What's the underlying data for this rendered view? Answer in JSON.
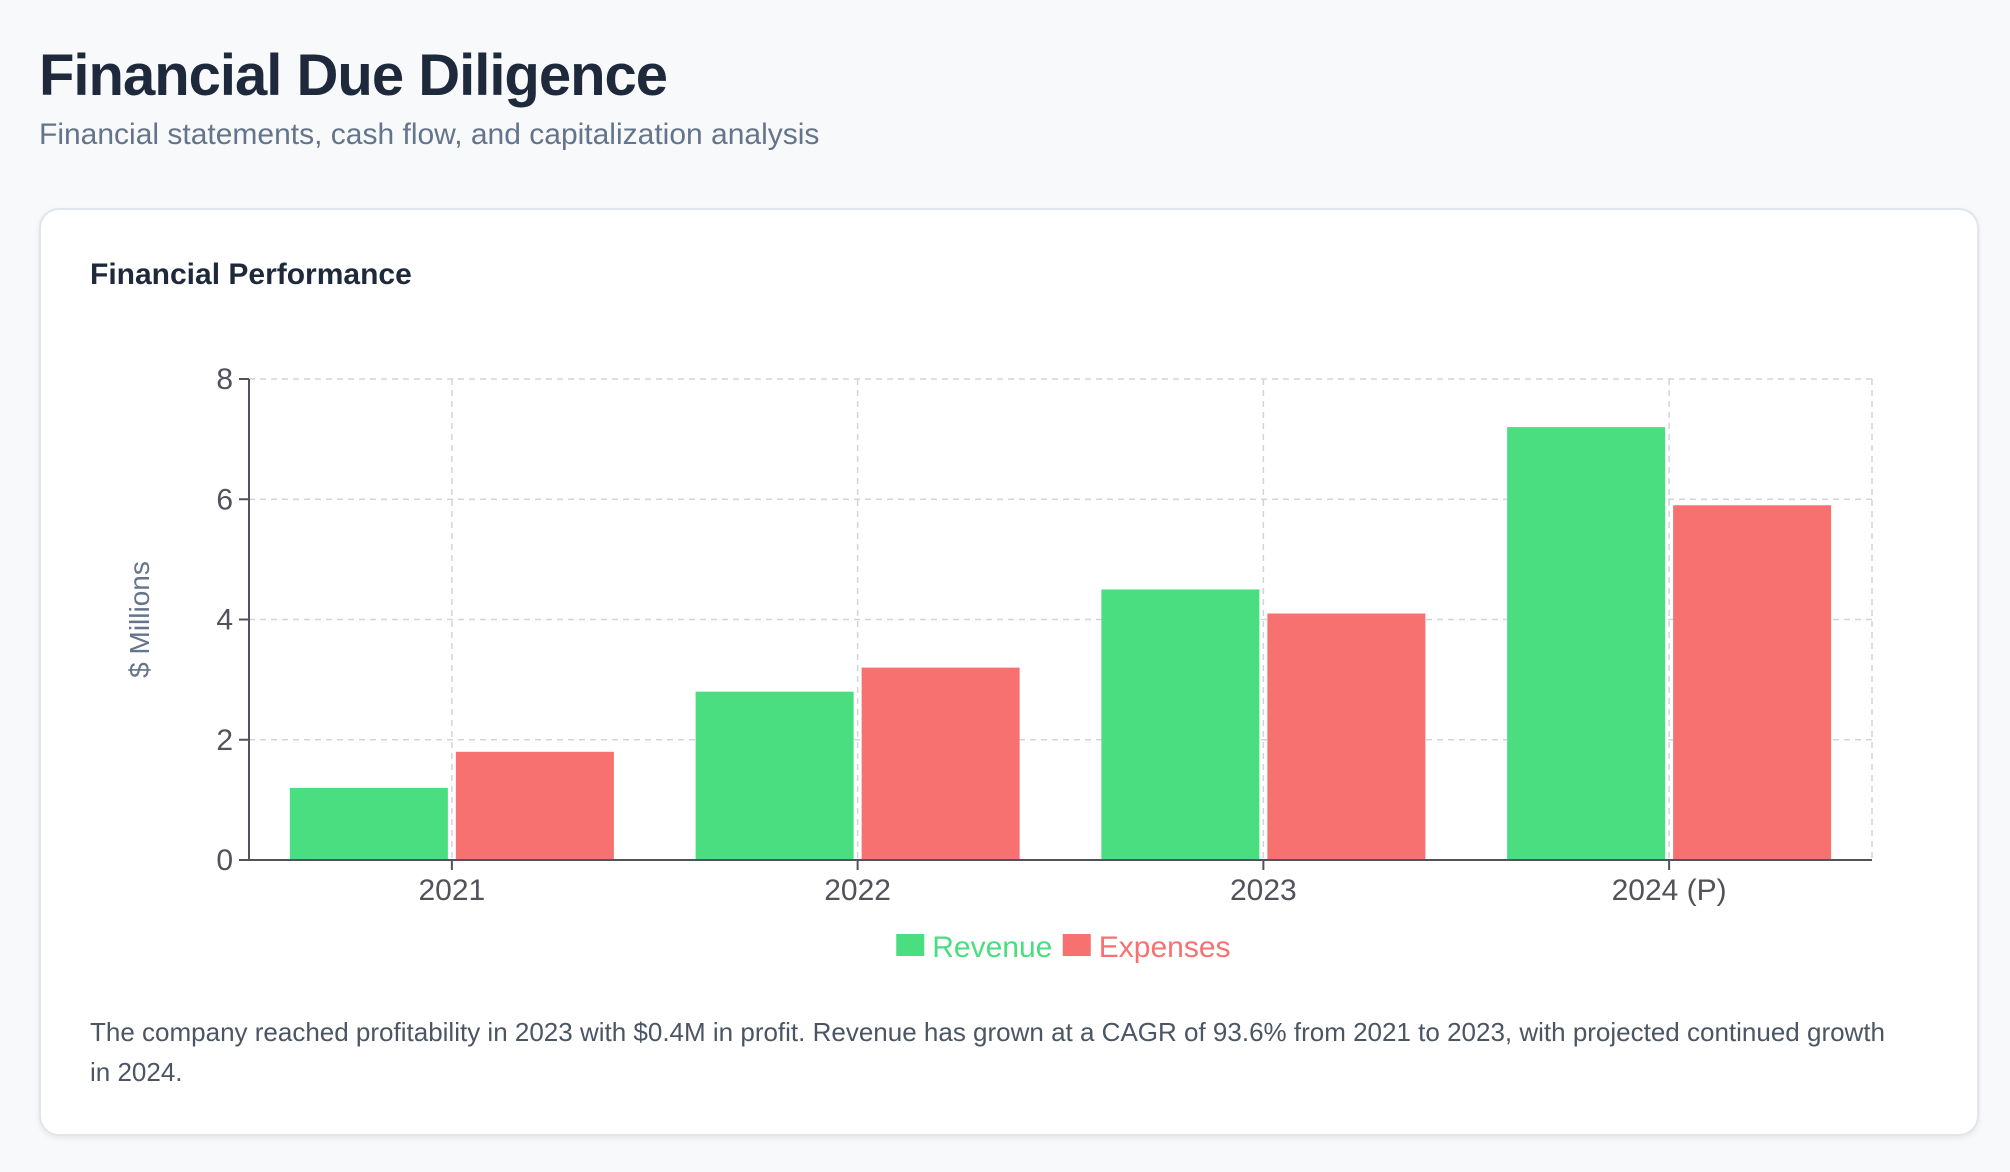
{
  "page": {
    "title": "Financial Due Diligence",
    "subtitle": "Financial statements, cash flow, and capitalization analysis"
  },
  "card": {
    "title": "Financial Performance",
    "note": "The company reached profitability in 2023 with $0.4M in profit. Revenue has grown at a CAGR of 93.6% from 2021 to 2023, with projected continued growth in 2024."
  },
  "chart_data": {
    "type": "bar",
    "title": "Financial Performance",
    "xlabel": "",
    "ylabel": "$ Millions",
    "categories": [
      "2021",
      "2022",
      "2023",
      "2024 (P)"
    ],
    "series": [
      {
        "name": "Revenue",
        "values": [
          1.2,
          2.8,
          4.5,
          7.2
        ],
        "color": "#4ade80"
      },
      {
        "name": "Expenses",
        "values": [
          1.8,
          3.2,
          4.1,
          5.9
        ],
        "color": "#f87171"
      }
    ],
    "ylim": [
      0,
      8
    ],
    "yticks": [
      0,
      2,
      4,
      6,
      8
    ],
    "grid": true,
    "legend": "bottom"
  }
}
